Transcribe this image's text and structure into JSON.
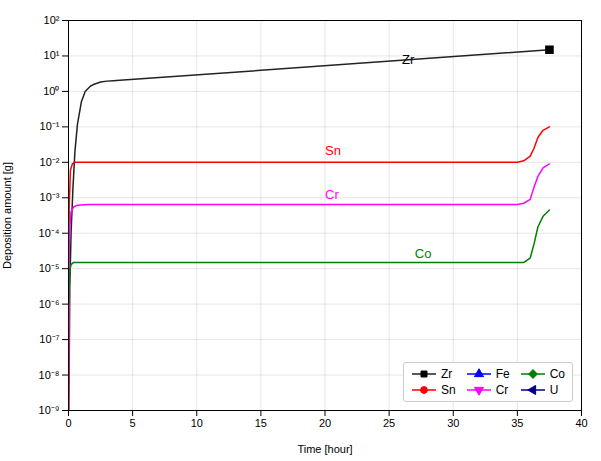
{
  "chart_data": {
    "type": "line",
    "xlabel": "Time [hour]",
    "ylabel": "Deposition amount [g]",
    "log": "y",
    "xlim": [
      0,
      40
    ],
    "ylim": [
      1e-09,
      100
    ],
    "xticks": [
      0,
      5,
      10,
      15,
      20,
      25,
      30,
      35,
      40
    ],
    "yticks": [
      {
        "value": 1e-09,
        "label": "10⁻⁹"
      },
      {
        "value": 1e-08,
        "label": "10⁻⁸"
      },
      {
        "value": 1e-07,
        "label": "10⁻⁷"
      },
      {
        "value": 1e-06,
        "label": "10⁻⁶"
      },
      {
        "value": 1e-05,
        "label": "10⁻⁵"
      },
      {
        "value": 0.0001,
        "label": "10⁻⁴"
      },
      {
        "value": 0.001,
        "label": "10⁻³"
      },
      {
        "value": 0.01,
        "label": "10⁻²"
      },
      {
        "value": 0.1,
        "label": "10⁻¹"
      },
      {
        "value": 1,
        "label": "10⁰"
      },
      {
        "value": 10,
        "label": "10¹"
      },
      {
        "value": 100,
        "label": "10²"
      }
    ],
    "grid": true,
    "legend": "lower right",
    "series": [
      {
        "name": "Zr",
        "color": "#222222",
        "marker": "square",
        "marker_color": "#000000",
        "marker_x": 37.5,
        "marker_y": 15.0,
        "x": [
          0.01,
          0.05,
          0.1,
          0.2,
          0.35,
          0.5,
          0.7,
          1.0,
          1.3,
          1.7,
          2.0,
          2.5,
          3.0,
          3.5,
          4.0,
          37.5
        ],
        "values": [
          1e-09,
          1e-08,
          3e-06,
          0.0001,
          0.002,
          0.02,
          0.12,
          0.5,
          1.0,
          1.4,
          1.6,
          1.85,
          1.95,
          2.0,
          2.05,
          15.0
        ]
      },
      {
        "name": "Sn",
        "color": "#ff0000",
        "marker": "circle",
        "x": [
          0.01,
          0.05,
          0.15,
          0.3,
          0.5,
          1.0,
          3.5,
          35.0,
          35.5,
          36.0,
          36.3,
          36.6,
          37.0,
          37.5
        ],
        "values": [
          1e-09,
          0.0005,
          0.006,
          0.009,
          0.01,
          0.01,
          0.01,
          0.01,
          0.011,
          0.015,
          0.025,
          0.05,
          0.08,
          0.1
        ]
      },
      {
        "name": "Fe",
        "color": "#0000ff",
        "marker": "triangle-up",
        "x": [],
        "values": []
      },
      {
        "name": "Cr",
        "color": "#ff00ff",
        "marker": "triangle-down",
        "x": [
          0.01,
          0.05,
          0.1,
          0.2,
          0.4,
          0.7,
          1.5,
          3.5,
          35.0,
          35.5,
          36.0,
          36.3,
          36.6,
          37.0,
          37.5
        ],
        "values": [
          1e-09,
          3e-05,
          0.00015,
          0.0004,
          0.00055,
          0.00062,
          0.00065,
          0.00065,
          0.00065,
          0.0007,
          0.0009,
          0.002,
          0.004,
          0.007,
          0.009
        ]
      },
      {
        "name": "Co",
        "color": "#008000",
        "marker": "diamond",
        "x": [
          0.01,
          0.05,
          0.1,
          0.2,
          0.4,
          0.7,
          1.5,
          3.5,
          35.0,
          35.5,
          36.0,
          36.3,
          36.6,
          37.0,
          37.5
        ],
        "values": [
          1e-06,
          5e-06,
          9e-06,
          1.3e-05,
          1.5e-05,
          1.5e-05,
          1.5e-05,
          1.5e-05,
          1.5e-05,
          1.5e-05,
          2e-05,
          5e-05,
          0.00015,
          0.0003,
          0.00045
        ]
      },
      {
        "name": "U",
        "color": "#000080",
        "marker": "triangle-left",
        "x": [],
        "values": []
      }
    ],
    "annotations": [
      {
        "text": "Zr",
        "x": 26,
        "y": 6.0,
        "color": "#000000"
      },
      {
        "text": "Sn",
        "x": 20,
        "y": 0.016,
        "color": "#ff0000"
      },
      {
        "text": "Cr",
        "x": 20,
        "y": 0.0009,
        "color": "#ff00ff"
      },
      {
        "text": "Co",
        "x": 27,
        "y": 2e-05,
        "color": "#008000"
      }
    ]
  }
}
